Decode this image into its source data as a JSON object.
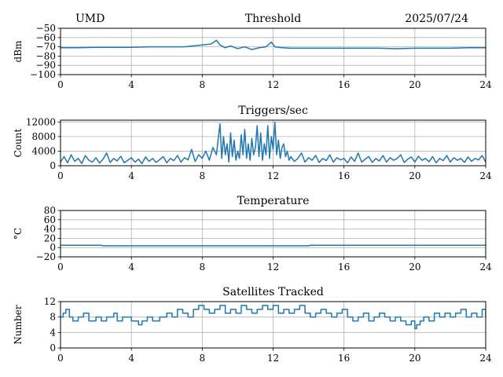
{
  "header": {
    "left": "UMD",
    "right": "2025/07/24"
  },
  "chart_data": [
    {
      "type": "line",
      "title": "Threshold",
      "ylabel": "dBm",
      "xlim": [
        0,
        24
      ],
      "ylim": [
        -100,
        -50
      ],
      "xticks": [
        0,
        4,
        8,
        12,
        16,
        20,
        24
      ],
      "xtick_labels": [
        "0",
        "4",
        "8",
        "12",
        "16",
        "20",
        "24"
      ],
      "yticks": [
        -50,
        -60,
        -70,
        -80,
        -90,
        -100
      ],
      "ytick_labels": [
        "−50",
        "−60",
        "−70",
        "−80",
        "−90",
        "−100"
      ],
      "grid": true,
      "series": [
        {
          "x": [
            0,
            1,
            2,
            3,
            4,
            5,
            6,
            7,
            7.5,
            8,
            8.5,
            8.8,
            9,
            9.3,
            9.6,
            10,
            10.4,
            10.8,
            11.2,
            11.6,
            11.9,
            12.1,
            12.5,
            13,
            14,
            15,
            16,
            17,
            18,
            19,
            20,
            21,
            22,
            23,
            24
          ],
          "y": [
            -71,
            -71,
            -70.5,
            -70.5,
            -70.5,
            -70,
            -70,
            -70,
            -69,
            -68,
            -67,
            -63,
            -68,
            -71,
            -69,
            -72,
            -70,
            -73,
            -71,
            -70,
            -65,
            -70,
            -71,
            -71.5,
            -71.5,
            -71.5,
            -71.5,
            -71.5,
            -71.5,
            -72,
            -71.5,
            -71.5,
            -71.5,
            -71,
            -71
          ]
        }
      ]
    },
    {
      "type": "line",
      "title": "Triggers/sec",
      "ylabel": "Count",
      "xlim": [
        0,
        24
      ],
      "ylim": [
        0,
        12500
      ],
      "xticks": [
        0,
        4,
        8,
        12,
        16,
        20,
        24
      ],
      "xtick_labels": [
        "0",
        "4",
        "8",
        "12",
        "16",
        "20",
        "24"
      ],
      "yticks": [
        0,
        4000,
        8000,
        12000
      ],
      "ytick_labels": [
        "0",
        "4000",
        "8000",
        "12000"
      ],
      "grid": true,
      "series": [
        {
          "x": [
            0,
            0.2,
            0.4,
            0.6,
            0.8,
            1.0,
            1.2,
            1.4,
            1.6,
            1.8,
            2.0,
            2.2,
            2.4,
            2.6,
            2.8,
            3.0,
            3.2,
            3.4,
            3.6,
            3.8,
            4.0,
            4.2,
            4.4,
            4.6,
            4.8,
            5.0,
            5.2,
            5.4,
            5.6,
            5.8,
            6.0,
            6.2,
            6.4,
            6.6,
            6.8,
            7.0,
            7.2,
            7.4,
            7.6,
            7.8,
            8.0,
            8.2,
            8.4,
            8.6,
            8.8,
            9.0,
            9.1,
            9.2,
            9.3,
            9.4,
            9.5,
            9.6,
            9.7,
            9.8,
            9.9,
            10.0,
            10.1,
            10.2,
            10.3,
            10.4,
            10.5,
            10.6,
            10.7,
            10.8,
            10.9,
            11.0,
            11.1,
            11.2,
            11.3,
            11.4,
            11.5,
            11.6,
            11.7,
            11.8,
            11.9,
            12.0,
            12.1,
            12.2,
            12.3,
            12.4,
            12.5,
            12.6,
            12.7,
            12.8,
            12.9,
            13.0,
            13.2,
            13.4,
            13.6,
            13.8,
            14.0,
            14.2,
            14.4,
            14.6,
            14.8,
            15.0,
            15.2,
            15.4,
            15.6,
            15.8,
            16.0,
            16.2,
            16.4,
            16.6,
            16.8,
            17.0,
            17.2,
            17.4,
            17.6,
            17.8,
            18.0,
            18.2,
            18.4,
            18.6,
            18.8,
            19.0,
            19.2,
            19.4,
            19.6,
            19.8,
            20.0,
            20.2,
            20.4,
            20.6,
            20.8,
            21.0,
            21.2,
            21.4,
            21.6,
            21.8,
            22.0,
            22.2,
            22.4,
            22.6,
            22.8,
            23.0,
            23.2,
            23.4,
            23.6,
            23.8,
            24.0
          ],
          "y": [
            1000,
            2500,
            800,
            3000,
            1200,
            2000,
            600,
            2800,
            1500,
            1000,
            2200,
            700,
            1800,
            3500,
            900,
            2000,
            1300,
            2600,
            800,
            1500,
            2200,
            1000,
            1800,
            600,
            2400,
            1200,
            2000,
            900,
            1700,
            2500,
            800,
            2000,
            1400,
            2800,
            1000,
            2200,
            1600,
            4500,
            1200,
            3000,
            2000,
            4000,
            1500,
            5000,
            3000,
            11500,
            2000,
            8000,
            3000,
            6000,
            1000,
            9000,
            2500,
            7000,
            1500,
            4000,
            2000,
            8500,
            3000,
            10000,
            2000,
            6000,
            1500,
            7500,
            3000,
            5000,
            11000,
            2500,
            9000,
            1500,
            6000,
            3000,
            11000,
            2000,
            8000,
            4500,
            12000,
            3000,
            7000,
            2000,
            5000,
            6000,
            2500,
            4000,
            1500,
            2500,
            1200,
            2000,
            3500,
            1000,
            2200,
            1500,
            2800,
            900,
            2000,
            1400,
            3000,
            1000,
            2200,
            1600,
            2000,
            800,
            2400,
            1200,
            3500,
            1000,
            1800,
            2500,
            900,
            2000,
            1300,
            2800,
            1000,
            2200,
            1500,
            2000,
            3000,
            900,
            1800,
            2400,
            1000,
            2600,
            1500,
            2000,
            1100,
            2500,
            800,
            2000,
            1400,
            2800,
            1000,
            2200,
            1500,
            2000,
            900,
            2400,
            1200,
            2000,
            1600,
            2800,
            1000
          ]
        }
      ]
    },
    {
      "type": "line",
      "title": "Temperature",
      "ylabel": "°C",
      "xlim": [
        0,
        24
      ],
      "ylim": [
        -20,
        80
      ],
      "xticks": [
        0,
        4,
        8,
        12,
        16,
        20,
        24
      ],
      "xtick_labels": [
        "0",
        "4",
        "8",
        "12",
        "16",
        "20",
        "24"
      ],
      "yticks": [
        -20,
        0,
        20,
        40,
        60,
        80
      ],
      "ytick_labels": [
        "−20",
        "0",
        "20",
        "40",
        "60",
        "80"
      ],
      "grid": true,
      "series": [
        {
          "x": [
            0,
            2.3,
            2.4,
            14,
            14.1,
            24
          ],
          "y": [
            5,
            5,
            4,
            4,
            5,
            5
          ]
        }
      ]
    },
    {
      "type": "line",
      "title": "Satellites Tracked",
      "ylabel": "Number",
      "xlim": [
        0,
        24
      ],
      "ylim": [
        0,
        12
      ],
      "xticks": [
        0,
        4,
        8,
        12,
        16,
        20,
        24
      ],
      "xtick_labels": [
        "0",
        "4",
        "8",
        "12",
        "16",
        "20",
        "24"
      ],
      "yticks": [
        0,
        4,
        8,
        12
      ],
      "ytick_labels": [
        "0",
        "4",
        "8",
        "12"
      ],
      "grid": true,
      "series": [
        {
          "step": true,
          "x": [
            0,
            0.15,
            0.3,
            0.5,
            0.7,
            1.0,
            1.3,
            1.6,
            2.0,
            2.3,
            2.6,
            3.0,
            3.2,
            3.5,
            3.8,
            4.0,
            4.4,
            4.6,
            4.9,
            5.2,
            5.6,
            6.0,
            6.3,
            6.6,
            6.9,
            7.2,
            7.5,
            7.8,
            8.1,
            8.4,
            8.7,
            9.0,
            9.3,
            9.6,
            9.9,
            10.2,
            10.5,
            10.8,
            11.1,
            11.4,
            11.7,
            12.0,
            12.3,
            12.6,
            12.9,
            13.2,
            13.5,
            13.8,
            14.1,
            14.4,
            14.7,
            15.0,
            15.3,
            15.6,
            15.9,
            16.2,
            16.5,
            16.8,
            17.1,
            17.4,
            17.7,
            18.0,
            18.3,
            18.6,
            18.9,
            19.2,
            19.5,
            19.8,
            20.0,
            20.1,
            20.3,
            20.5,
            20.8,
            21.1,
            21.4,
            21.7,
            22.0,
            22.3,
            22.6,
            22.9,
            23.2,
            23.5,
            23.8,
            24.0
          ],
          "y": [
            8,
            9,
            10,
            8,
            7,
            8,
            9,
            7,
            8,
            7,
            8,
            9,
            7,
            8,
            8,
            7,
            6,
            7,
            8,
            7,
            8,
            9,
            8,
            10,
            9,
            8,
            10,
            11,
            10,
            9,
            10,
            11,
            9,
            10,
            9,
            11,
            10,
            9,
            10,
            11,
            10,
            11,
            9,
            10,
            9,
            10,
            11,
            9,
            8,
            9,
            10,
            9,
            8,
            9,
            10,
            8,
            7,
            8,
            9,
            7,
            8,
            9,
            8,
            7,
            8,
            7,
            6,
            7,
            5,
            6,
            7,
            8,
            7,
            9,
            8,
            9,
            8,
            9,
            10,
            8,
            9,
            8,
            10,
            8
          ]
        }
      ]
    }
  ]
}
